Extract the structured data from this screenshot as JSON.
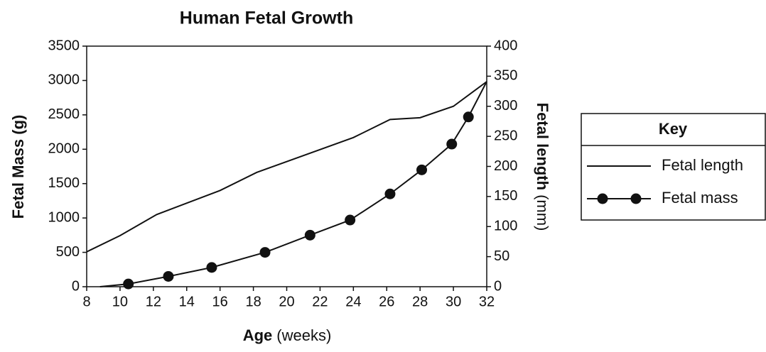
{
  "chart_data": {
    "type": "line",
    "title": "Human Fetal Growth",
    "x_label": "Age",
    "x_label_unit": "(weeks)",
    "y_label": "Fetal Mass (g)",
    "y2_label": "Fetal length",
    "y2_label_unit": "(mm)",
    "xlim": [
      8,
      32
    ],
    "xticks": [
      8,
      10,
      12,
      14,
      16,
      18,
      20,
      22,
      24,
      26,
      28,
      30,
      32
    ],
    "ylim": [
      0,
      3500
    ],
    "yticks": [
      0,
      500,
      1000,
      1500,
      2000,
      2500,
      3000,
      3500
    ],
    "y2lim": [
      0,
      400
    ],
    "y2ticks": [
      0,
      50,
      100,
      150,
      200,
      250,
      300,
      350,
      400
    ],
    "legend_title": "Key",
    "series": [
      {
        "name": "Fetal length",
        "color": "#111111",
        "axis": "y2",
        "x": [
          8,
          10,
          12.2,
          16,
          18.2,
          24,
          26.2,
          28,
          30,
          32
        ],
        "values": [
          58,
          85,
          120,
          160,
          190,
          248,
          278,
          281,
          300,
          341
        ]
      },
      {
        "name": "Fetal mass",
        "color": "#111111",
        "axis": "y",
        "x": [
          8.8,
          10.5,
          12.9,
          15.5,
          18.7,
          21.4,
          23.8,
          26.2,
          28.1,
          29.9,
          30.9,
          32
        ],
        "values": [
          0,
          40,
          150,
          280,
          500,
          750,
          970,
          1350,
          1700,
          2075,
          2470,
          2985
        ],
        "markers": [
          false,
          true,
          true,
          true,
          true,
          true,
          true,
          true,
          true,
          true,
          true,
          false
        ]
      }
    ]
  }
}
